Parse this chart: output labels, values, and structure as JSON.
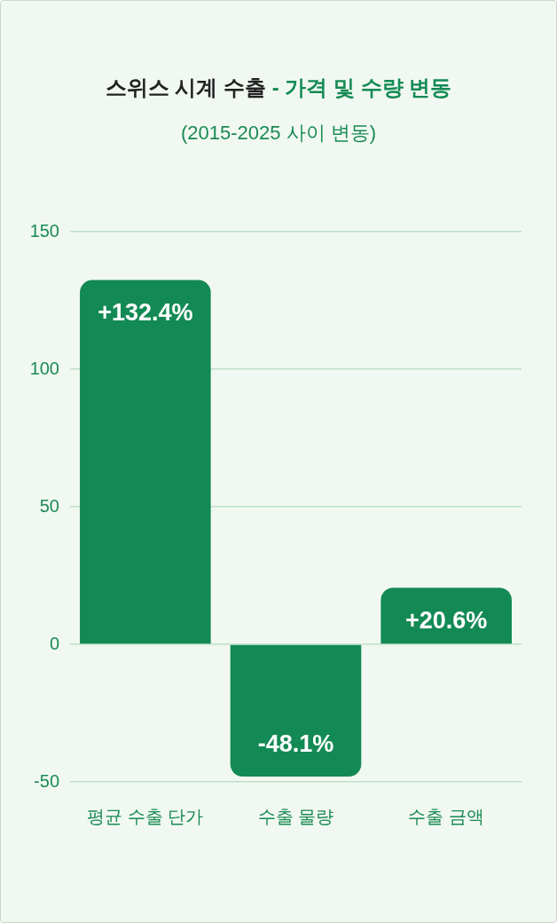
{
  "chart_data": {
    "type": "bar",
    "title": "스위스 시계 수출 - 가격 및 수량 변동",
    "subtitle": "(2015-2025 사이 변동)",
    "categories": [
      "평균 수출 단가",
      "수출 물량",
      "수출 금액"
    ],
    "values": [
      132.4,
      -48.1,
      20.6
    ],
    "value_labels": [
      "+132.4%",
      "-48.1%",
      "+20.6%"
    ],
    "color": "#138a55",
    "ylim": [
      -50,
      150
    ],
    "yticks": [
      -50,
      0,
      50,
      100,
      150
    ],
    "grid": "y",
    "legend": false
  }
}
